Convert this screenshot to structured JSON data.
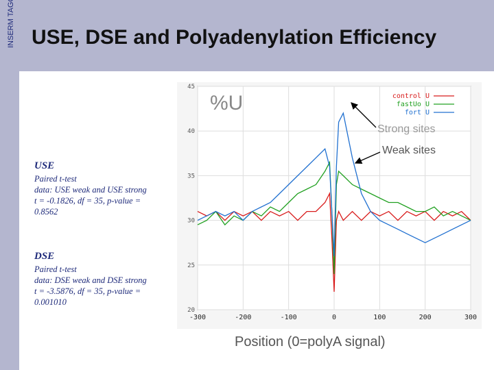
{
  "sidebar": {
    "label": "INSERM TAGC"
  },
  "slide": {
    "title": "USE, DSE and Polyadenylation Efficiency"
  },
  "stats": {
    "use": {
      "heading": "USE",
      "lines": [
        "Paired t-test",
        "data:  USE weak and USE strong",
        "t = -0.1826, df = 35, p-value =",
        "0.8562"
      ]
    },
    "dse": {
      "heading": "DSE",
      "lines": [
        "Paired t-test",
        "data:  DSE weak and DSE strong",
        "t = -3.5876, df = 35, p-value =",
        "0.001010"
      ]
    }
  },
  "annotations": {
    "strong": "Strong sites",
    "weak": "Weak sites"
  },
  "chart_data": {
    "type": "line",
    "title": "%U",
    "xlabel": "Position (0=polyA signal)",
    "ylabel": "",
    "xlim": [
      -300,
      300
    ],
    "ylim": [
      20,
      45
    ],
    "xticks": [
      -300,
      -200,
      -100,
      0,
      100,
      200,
      300
    ],
    "yticks": [
      20,
      25,
      30,
      35,
      40,
      45
    ],
    "grid": true,
    "legend": "top-right",
    "x": [
      -300,
      -280,
      -260,
      -240,
      -220,
      -200,
      -180,
      -160,
      -140,
      -120,
      -100,
      -80,
      -60,
      -40,
      -20,
      -10,
      -5,
      0,
      5,
      10,
      20,
      40,
      60,
      80,
      100,
      120,
      140,
      160,
      180,
      200,
      220,
      240,
      260,
      280,
      300
    ],
    "series": [
      {
        "name": "control U",
        "color": "#d81b1b",
        "values": [
          31,
          30.5,
          31,
          30,
          31,
          30.5,
          31,
          30,
          31,
          30.5,
          31,
          30,
          31,
          31,
          32,
          33,
          28,
          22,
          30,
          31,
          30,
          31,
          30,
          31,
          30.5,
          31,
          30,
          31,
          30.5,
          31,
          30,
          31,
          30.5,
          31,
          30
        ]
      },
      {
        "name": "fastUo U",
        "color": "#20a020",
        "values": [
          29.5,
          30,
          31,
          29.5,
          30.5,
          30,
          31,
          30.5,
          31.5,
          31,
          32,
          33,
          33.5,
          34,
          35.5,
          36.5,
          31,
          24,
          34,
          35.5,
          35,
          34,
          33.5,
          33,
          32.5,
          32,
          32,
          31.5,
          31,
          31,
          31.5,
          30.5,
          31,
          30.5,
          30
        ]
      },
      {
        "name": "fort U",
        "color": "#2070d0",
        "values": [
          30,
          30.5,
          31,
          30.5,
          31,
          30,
          31,
          31.5,
          32,
          33,
          34,
          35,
          36,
          37,
          38,
          36,
          31,
          26,
          36,
          41,
          42,
          37,
          33,
          31,
          30,
          29.5,
          29,
          28.5,
          28,
          27.5,
          28,
          28.5,
          29,
          29.5,
          30
        ]
      }
    ]
  }
}
